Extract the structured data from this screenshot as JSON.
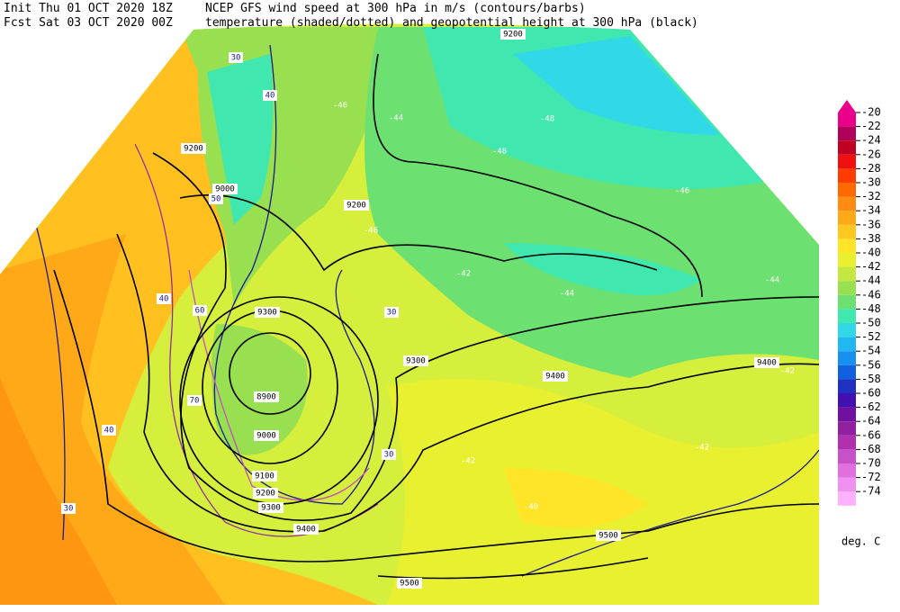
{
  "header": {
    "init": "Init  Thu 01 OCT 2020 18Z",
    "fcst": "Fcst Sat 03 OCT 2020 00Z",
    "title1": "NCEP GFS wind speed at 300 hPa in m/s (contours/barbs)",
    "title2": "temperature (shaded/dotted) and geopotential height at 300 hPa (black)"
  },
  "colorbar": {
    "unit": "deg. C",
    "levels": [
      {
        "label": "-20",
        "color": "#e8008a"
      },
      {
        "label": "-22",
        "color": "#b0005a"
      },
      {
        "label": "-24",
        "color": "#c00020"
      },
      {
        "label": "-26",
        "color": "#f01010"
      },
      {
        "label": "-28",
        "color": "#ff3c00"
      },
      {
        "label": "-30",
        "color": "#ff6a00"
      },
      {
        "label": "-32",
        "color": "#ff8c10"
      },
      {
        "label": "-34",
        "color": "#ffa818"
      },
      {
        "label": "-36",
        "color": "#ffc820"
      },
      {
        "label": "-38",
        "color": "#ffe428"
      },
      {
        "label": "-40",
        "color": "#e8f030"
      },
      {
        "label": "-42",
        "color": "#c4e840"
      },
      {
        "label": "-44",
        "color": "#98e050"
      },
      {
        "label": "-46",
        "color": "#6ce070"
      },
      {
        "label": "-48",
        "color": "#40e8b0"
      },
      {
        "label": "-50",
        "color": "#30d8e8"
      },
      {
        "label": "-52",
        "color": "#20b8f0"
      },
      {
        "label": "-54",
        "color": "#1890f0"
      },
      {
        "label": "-56",
        "color": "#1060e0"
      },
      {
        "label": "-58",
        "color": "#2030c0"
      },
      {
        "label": "-60",
        "color": "#4010b0"
      },
      {
        "label": "-62",
        "color": "#7010a0"
      },
      {
        "label": "-64",
        "color": "#9020a0"
      },
      {
        "label": "-66",
        "color": "#b030b0"
      },
      {
        "label": "-68",
        "color": "#c850c8"
      },
      {
        "label": "-70",
        "color": "#e070e0"
      },
      {
        "label": "-72",
        "color": "#f090f0"
      },
      {
        "label": "-74",
        "color": "#ffb0ff"
      }
    ]
  },
  "map": {
    "height_labels": [
      "9300",
      "8900",
      "9000",
      "9100",
      "9200",
      "9300",
      "9400",
      "9200",
      "9300",
      "9400",
      "9400",
      "9500",
      "9500",
      "9200",
      "9000",
      "9200"
    ],
    "temperature_labels": [
      "-46",
      "-44",
      "-48",
      "-46",
      "-48",
      "-42",
      "-44",
      "-42",
      "-40",
      "-42",
      "-42",
      "-46",
      "-44"
    ],
    "wind_labels": [
      "30",
      "40",
      "50",
      "60",
      "70",
      "40",
      "30",
      "30",
      "30",
      "40"
    ]
  }
}
